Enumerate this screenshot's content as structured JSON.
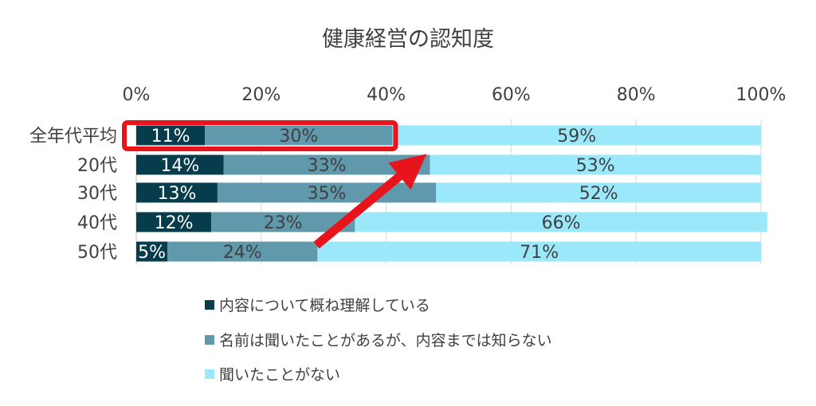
{
  "chart_data": {
    "type": "bar",
    "orientation": "horizontal",
    "stacked": true,
    "percent_stacked": true,
    "title": "健康経営の認知度",
    "categories": [
      "全年代平均",
      "20代",
      "30代",
      "40代",
      "50代"
    ],
    "xlim": [
      0,
      100
    ],
    "x_ticks": [
      "0%",
      "20%",
      "40%",
      "60%",
      "80%",
      "100%"
    ],
    "x_tick_values": [
      0,
      20,
      40,
      60,
      80,
      100
    ],
    "x_axis_position": "top",
    "grid": true,
    "legend_position": "bottom",
    "series": [
      {
        "name": "内容について概ね理解している",
        "values": [
          11,
          14,
          13,
          12,
          5
        ],
        "color": "#073c4c",
        "label_color": "#ffffff"
      },
      {
        "name": "名前は聞いたことがあるが、内容までは知らない",
        "values": [
          30,
          33,
          35,
          23,
          24
        ],
        "color": "#6199ac",
        "label_color": "#404040"
      },
      {
        "name": "聞いたことがない",
        "values": [
          59,
          53,
          52,
          66,
          71
        ],
        "color": "#9ae8f9",
        "label_color": "#404040"
      }
    ],
    "data_labels": [
      [
        "11%",
        "14%",
        "13%",
        "12%",
        "5%"
      ],
      [
        "30%",
        "33%",
        "35%",
        "23%",
        "24%"
      ],
      [
        "59%",
        "53%",
        "52%",
        "66%",
        "71%"
      ]
    ],
    "highlight_category": "全年代平均",
    "highlight_color": "#e8141c",
    "arrow_color": "#e8141c"
  }
}
